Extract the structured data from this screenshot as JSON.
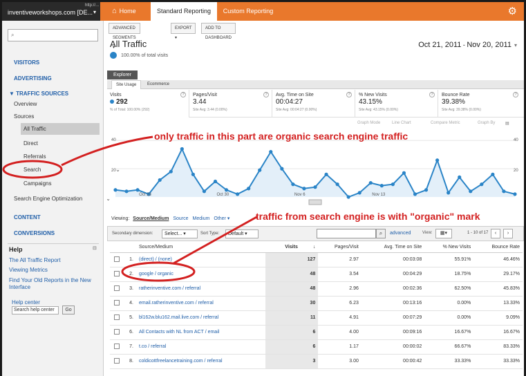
{
  "topbar": {
    "account_url": "http://...",
    "account_name": "inventiveworkshops.com [DE...",
    "tabs": [
      "Home",
      "Standard Reporting",
      "Custom Reporting"
    ]
  },
  "sidebar": {
    "search_placeholder": "",
    "sections": {
      "visitors": "VISITORS",
      "advertising": "ADVERTISING",
      "traffic_sources": "▼ TRAFFIC SOURCES",
      "content": "CONTENT",
      "conversions": "CONVERSIONS"
    },
    "items": {
      "overview": "Overview",
      "sources": "Sources",
      "all_traffic": "All Traffic",
      "direct": "Direct",
      "referrals": "Referrals",
      "search": "Search",
      "campaigns": "Campaigns",
      "seo": "Search Engine Optimization"
    },
    "help": {
      "title": "Help",
      "links": [
        "The All Traffic Report",
        "Viewing Metrics",
        "Find Your Old Reports in the New Interface"
      ],
      "help_center": "Help center",
      "search_value": "Search help center",
      "go": "Go"
    }
  },
  "toolbar": {
    "advanced_segments": "ADVANCED SEGMENTS ▾",
    "export": "EXPORT ▾",
    "add_to_dashboard": "ADD TO DASHBOARD"
  },
  "report": {
    "title": "All Traffic",
    "pct_total": "100.00% of total visits",
    "date_start": "Oct 21, 2011",
    "date_sep": " - ",
    "date_end": "Nov 20, 2011"
  },
  "explorer": {
    "label": "Explorer",
    "subtabs": [
      "Site Usage",
      "Ecommerce"
    ]
  },
  "metrics": [
    {
      "label": "Visits",
      "value": "292",
      "sub": "% of Total: 100.00% (292)"
    },
    {
      "label": "Pages/Visit",
      "value": "3.44",
      "sub": "Site Avg: 3.44 (0.00%)"
    },
    {
      "label": "Avg. Time on Site",
      "value": "00:04:27",
      "sub": "Site Avg: 00:04:27 (0.00%)"
    },
    {
      "label": "% New Visits",
      "value": "43.15%",
      "sub": "Site Avg: 43.15% (0.00%)"
    },
    {
      "label": "Bounce Rate",
      "value": "39.38%",
      "sub": "Site Avg: 39.38% (0.00%)"
    }
  ],
  "graph_options": {
    "graph_mode": "Graph Mode",
    "line_chart": "Line Chart",
    "compare_metric": "Compare Metric",
    "graph_by": "Graph By"
  },
  "chart_data": {
    "type": "line",
    "y_ticks": [
      "40",
      "20"
    ],
    "x_labels": [
      "Oct 23",
      "Oct 30",
      "Nov 6",
      "Nov 13"
    ],
    "ylim": [
      0,
      45
    ],
    "values": [
      5,
      4,
      5,
      2,
      12,
      18,
      34,
      16,
      4,
      11,
      5,
      2,
      6,
      19,
      32,
      20,
      9,
      6,
      7,
      16,
      9,
      0,
      3,
      10,
      8,
      9,
      17,
      2,
      5,
      26,
      3,
      14,
      4,
      9,
      16,
      4,
      2
    ]
  },
  "viewing": {
    "label": "Viewing:",
    "active": "Source/Medium",
    "links": [
      "Source",
      "Medium",
      "Other ▾"
    ]
  },
  "tablebar": {
    "secondary_dimension": "Secondary dimension:",
    "select": "Select... ▾",
    "sort_type": "Sort Type:",
    "default": "Default ▾",
    "search_value": "",
    "advanced": "advanced",
    "view": "View:",
    "count": "1 - 10 of 17"
  },
  "table": {
    "headers": [
      "Source/Medium",
      "Visits",
      "Pages/Visit",
      "Avg. Time on Site",
      "% New Visits",
      "Bounce Rate"
    ],
    "sort_arrow": "↓",
    "rows": [
      {
        "n": "1.",
        "src": "(direct) / (none)",
        "visits": "127",
        "ppv": "2.97",
        "time": "00:03:08",
        "newv": "55.91%",
        "bounce": "46.46%"
      },
      {
        "n": "2.",
        "src": "google / organic",
        "visits": "48",
        "ppv": "3.54",
        "time": "00:04:29",
        "newv": "18.75%",
        "bounce": "29.17%"
      },
      {
        "n": "3.",
        "src": "ratherinventive.com / referral",
        "visits": "48",
        "ppv": "2.96",
        "time": "00:02:36",
        "newv": "62.50%",
        "bounce": "45.83%"
      },
      {
        "n": "4.",
        "src": "email.ratherinventive.com / referral",
        "visits": "30",
        "ppv": "6.23",
        "time": "00:13:16",
        "newv": "0.00%",
        "bounce": "13.33%"
      },
      {
        "n": "5.",
        "src": "bl162w.blu162.mail.live.com / referral",
        "visits": "11",
        "ppv": "4.91",
        "time": "00:07:29",
        "newv": "0.00%",
        "bounce": "9.09%"
      },
      {
        "n": "6.",
        "src": "All Contacts with NL from ACT / email",
        "visits": "6",
        "ppv": "4.00",
        "time": "00:09:16",
        "newv": "16.67%",
        "bounce": "16.67%"
      },
      {
        "n": "7.",
        "src": "t.co / referral",
        "visits": "6",
        "ppv": "1.17",
        "time": "00:00:02",
        "newv": "66.67%",
        "bounce": "83.33%"
      },
      {
        "n": "8.",
        "src": "coldicottfreelancetraining.com / referral",
        "visits": "3",
        "ppv": "3.00",
        "time": "00:00:42",
        "newv": "33.33%",
        "bounce": "33.33%"
      }
    ]
  },
  "annotations": {
    "top": "only traffic in this part are organic search engine traffic",
    "bottom": "traffic from search engine is with \"organic\" mark",
    "color": "#d32020"
  },
  "colors": {
    "accent": "#e9782c",
    "link": "#1f5ea8",
    "line": "#2a84c7"
  }
}
